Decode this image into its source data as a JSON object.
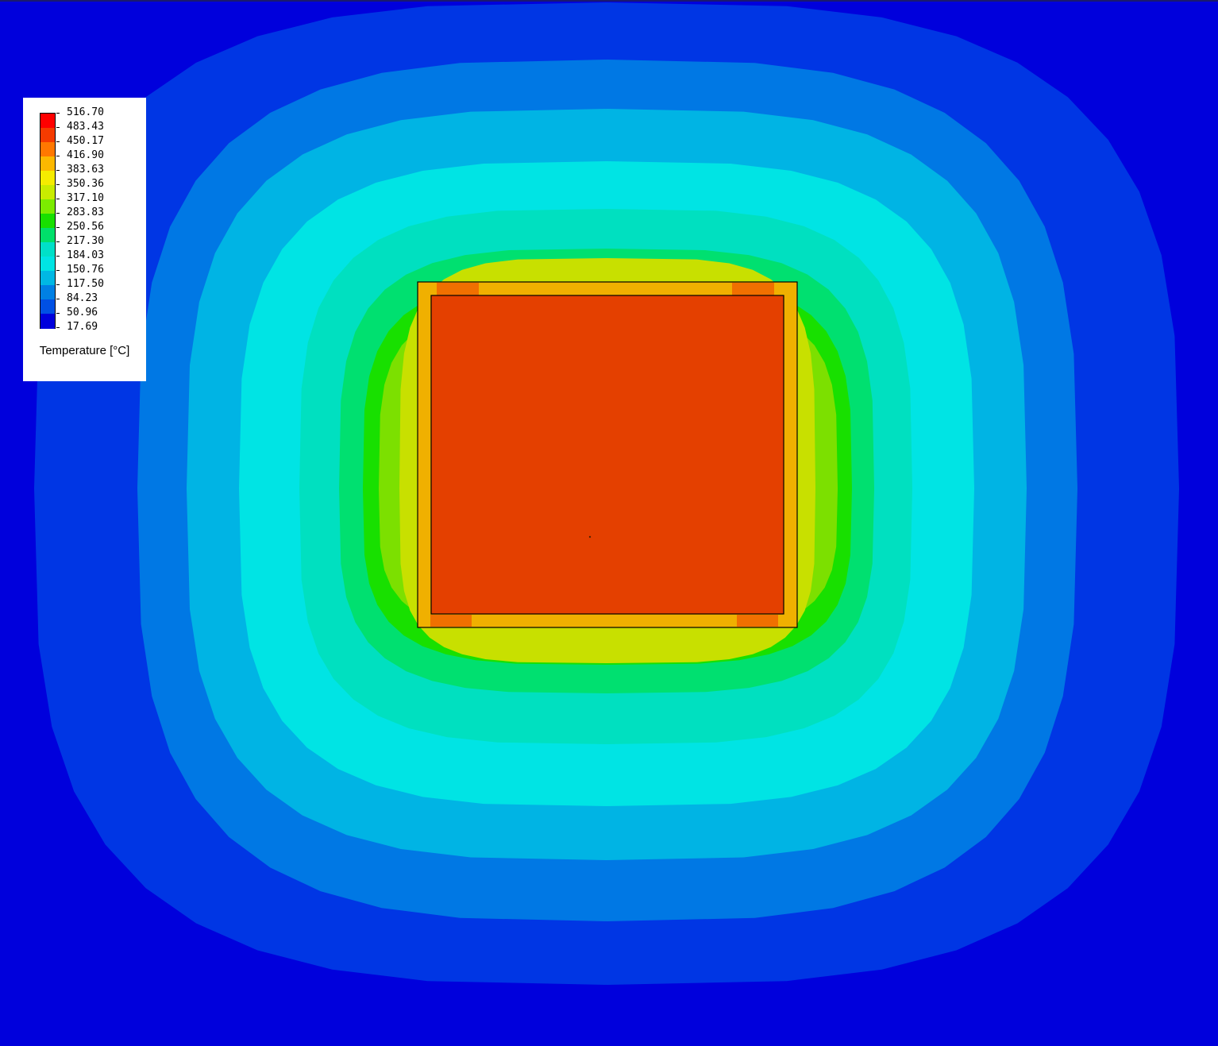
{
  "legend": {
    "title": "Temperature [°C]",
    "levels": [
      "516.70",
      "483.43",
      "450.17",
      "416.90",
      "383.63",
      "350.36",
      "317.10",
      "283.83",
      "250.56",
      "217.30",
      "184.03",
      "150.76",
      "117.50",
      "84.23",
      "50.96",
      "17.69"
    ],
    "band_colors": [
      "#ff0000",
      "#f53b00",
      "#ff7800",
      "#fcb800",
      "#f5ec00",
      "#c9ec00",
      "#7cec00",
      "#18e000",
      "#00e06a",
      "#00e0c8",
      "#00e4e4",
      "#00b8e4",
      "#0080e4",
      "#0050e4",
      "#0000dc"
    ]
  },
  "field": {
    "background_color": "#0000dc",
    "contour_colors": [
      "#0000dc",
      "#0036e4",
      "#0078e4",
      "#00b4e4",
      "#00e4e4",
      "#00e0c0",
      "#00e070",
      "#18e000",
      "#7ce000",
      "#c8e000"
    ],
    "slab_fill_color": "#e44000",
    "casing_color": "#f0b000",
    "corner_accent_color": "#f07000"
  }
}
